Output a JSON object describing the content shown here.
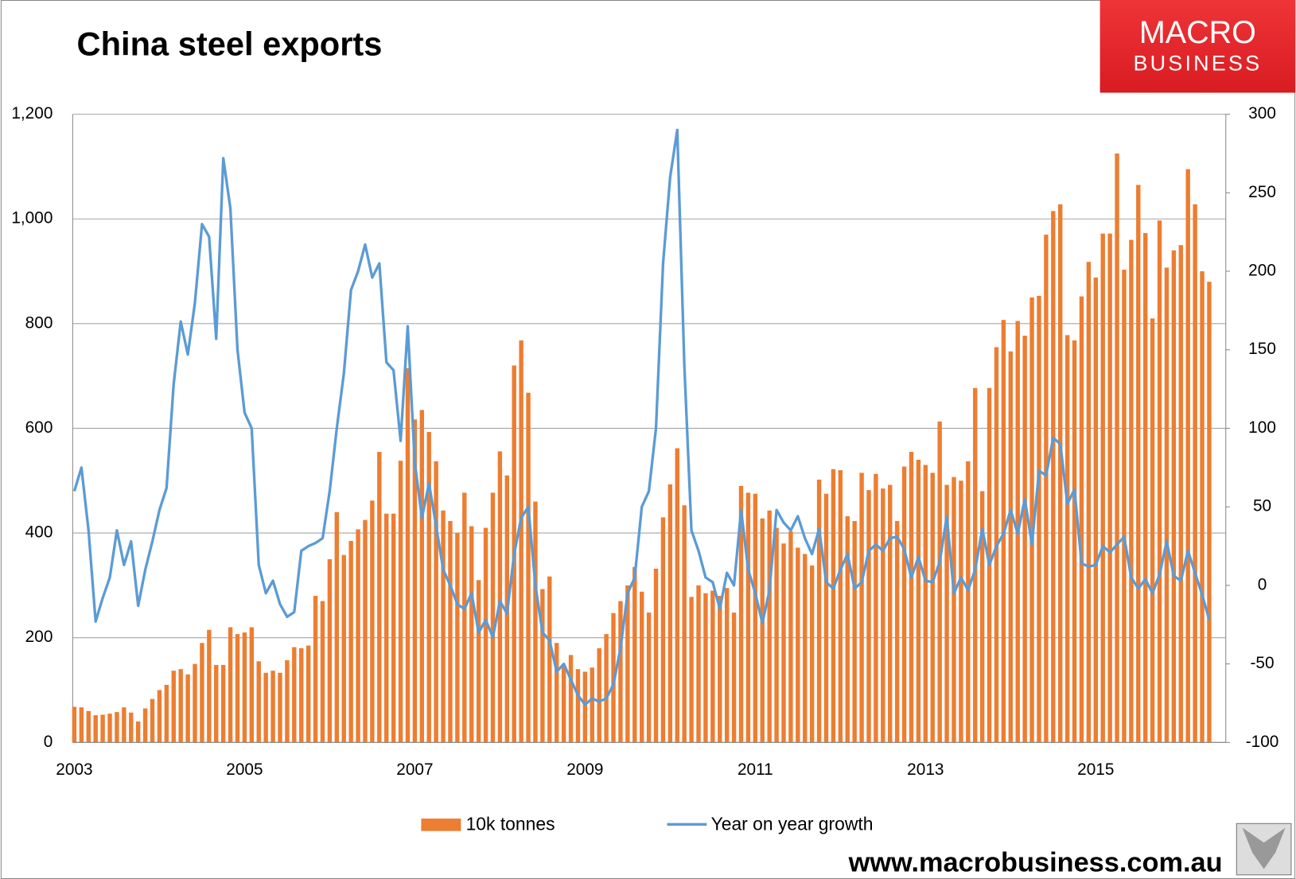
{
  "chart_data": {
    "type": "bar_line",
    "title": "China steel exports",
    "categories": [
      "2003",
      null,
      null,
      null,
      null,
      null,
      null,
      null,
      null,
      null,
      null,
      null,
      null,
      null,
      null,
      null,
      null,
      null,
      null,
      null,
      null,
      null,
      null,
      null,
      "2005",
      null,
      null,
      null,
      null,
      null,
      null,
      null,
      null,
      null,
      null,
      null,
      null,
      null,
      null,
      null,
      null,
      null,
      null,
      null,
      null,
      null,
      null,
      null,
      "2007",
      null,
      null,
      null,
      null,
      null,
      null,
      null,
      null,
      null,
      null,
      null,
      null,
      null,
      null,
      null,
      null,
      null,
      null,
      null,
      null,
      null,
      null,
      null,
      "2009",
      null,
      null,
      null,
      null,
      null,
      null,
      null,
      null,
      null,
      null,
      null,
      null,
      null,
      null,
      null,
      null,
      null,
      null,
      null,
      null,
      null,
      null,
      null,
      "2011",
      null,
      null,
      null,
      null,
      null,
      null,
      null,
      null,
      null,
      null,
      null,
      null,
      null,
      null,
      null,
      null,
      null,
      null,
      null,
      null,
      null,
      null,
      null,
      "2013",
      null,
      null,
      null,
      null,
      null,
      null,
      null,
      null,
      null,
      null,
      null,
      null,
      null,
      null,
      null,
      null,
      null,
      null,
      null,
      null,
      null,
      null,
      null,
      "2015",
      null,
      null,
      null,
      null,
      null,
      null,
      null,
      null,
      null,
      null,
      null,
      null,
      null,
      null,
      null,
      null
    ],
    "series": [
      {
        "name": "10k tonnes",
        "color": "#ed7d31",
        "kind": "bar",
        "values": [
          68,
          67,
          60,
          52,
          53,
          55,
          58,
          67,
          57,
          40,
          65,
          83,
          100,
          110,
          137,
          140,
          130,
          150,
          190,
          215,
          148,
          148,
          220,
          207,
          210,
          220,
          155,
          133,
          137,
          133,
          157,
          182,
          180,
          185,
          280,
          270,
          350,
          440,
          358,
          385,
          407,
          425,
          462,
          555,
          437,
          437,
          538,
          715,
          617,
          635,
          593,
          537,
          443,
          423,
          400,
          477,
          413,
          310,
          410,
          477,
          556,
          510,
          720,
          768,
          668,
          460,
          293,
          317,
          190,
          148,
          167,
          140,
          135,
          143,
          180,
          207,
          247,
          270,
          300,
          335,
          288,
          248,
          332,
          430,
          493,
          562,
          453,
          278,
          300,
          285,
          290,
          280,
          295,
          248,
          490,
          477,
          475,
          428,
          443,
          410,
          380,
          403,
          372,
          360,
          338,
          502,
          475,
          522,
          520,
          432,
          423,
          515,
          482,
          513,
          485,
          492,
          423,
          527,
          555,
          540,
          530,
          515,
          613,
          492,
          507,
          500,
          537,
          677,
          480,
          677,
          755,
          807,
          747,
          805,
          777,
          850,
          853,
          970,
          1015,
          1028,
          778,
          768,
          852,
          918,
          888,
          972,
          972,
          1125,
          903,
          960,
          1065,
          973,
          810,
          997,
          907,
          940,
          950,
          1095,
          1028,
          900,
          880
        ]
      },
      {
        "name": "Year on year growth",
        "color": "#5b9bd5",
        "kind": "line",
        "axis": "y2",
        "values": [
          60,
          75,
          35,
          -23,
          -8,
          5,
          35,
          13,
          28,
          -13,
          10,
          28,
          48,
          62,
          128,
          168,
          147,
          180,
          230,
          222,
          157,
          272,
          240,
          150,
          110,
          100,
          13,
          -5,
          3,
          -12,
          -20,
          -17,
          22,
          25,
          27,
          30,
          60,
          100,
          135,
          188,
          200,
          217,
          196,
          205,
          142,
          137,
          92,
          165,
          78,
          43,
          65,
          38,
          10,
          0,
          -12,
          -15,
          -5,
          -30,
          -22,
          -33,
          -10,
          -18,
          20,
          43,
          50,
          0,
          -30,
          -35,
          -55,
          -50,
          -60,
          -70,
          -76,
          -72,
          -74,
          -72,
          -63,
          -40,
          -5,
          5,
          50,
          60,
          100,
          205,
          260,
          290,
          140,
          35,
          22,
          5,
          2,
          -15,
          8,
          0,
          48,
          10,
          -5,
          -24,
          -3,
          48,
          40,
          35,
          44,
          30,
          20,
          36,
          2,
          -2,
          10,
          20,
          -2,
          2,
          22,
          26,
          22,
          30,
          31,
          23,
          5,
          18,
          3,
          2,
          15,
          44,
          -5,
          5,
          -3,
          10,
          36,
          13,
          25,
          33,
          48,
          33,
          55,
          26,
          73,
          70,
          94,
          90,
          52,
          61,
          14,
          12,
          13,
          25,
          21,
          26,
          31,
          5,
          -2,
          4,
          -5,
          7,
          28,
          6,
          3,
          22,
          8,
          -6,
          -22
        ]
      }
    ],
    "ylim": [
      0,
      1200
    ],
    "yticks": [
      0,
      200,
      400,
      600,
      800,
      {
        "value": 1000,
        "label": "1,000"
      },
      {
        "value": 1200,
        "label": "1,200"
      }
    ],
    "y2lim": [
      -100,
      300
    ],
    "y2ticks": [
      -100,
      -50,
      0,
      50,
      100,
      150,
      200,
      250,
      300
    ],
    "grid": true,
    "legend": "bottom"
  },
  "logo": {
    "line1": "MACRO",
    "line2": "BUSINESS"
  },
  "footer": "www.macrobusiness.com.au"
}
